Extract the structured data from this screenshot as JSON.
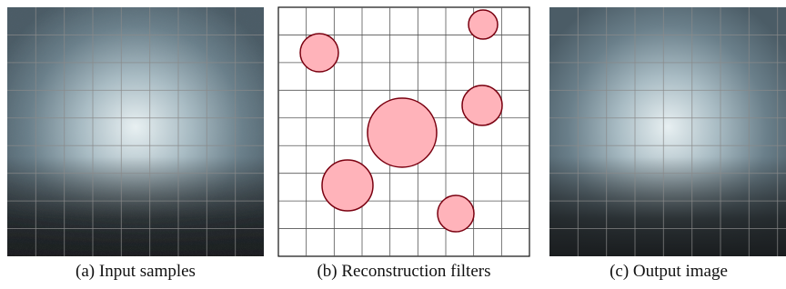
{
  "captions": [
    "(a) Input samples",
    "(b) Reconstruction filters",
    "(c) Output image"
  ]
}
